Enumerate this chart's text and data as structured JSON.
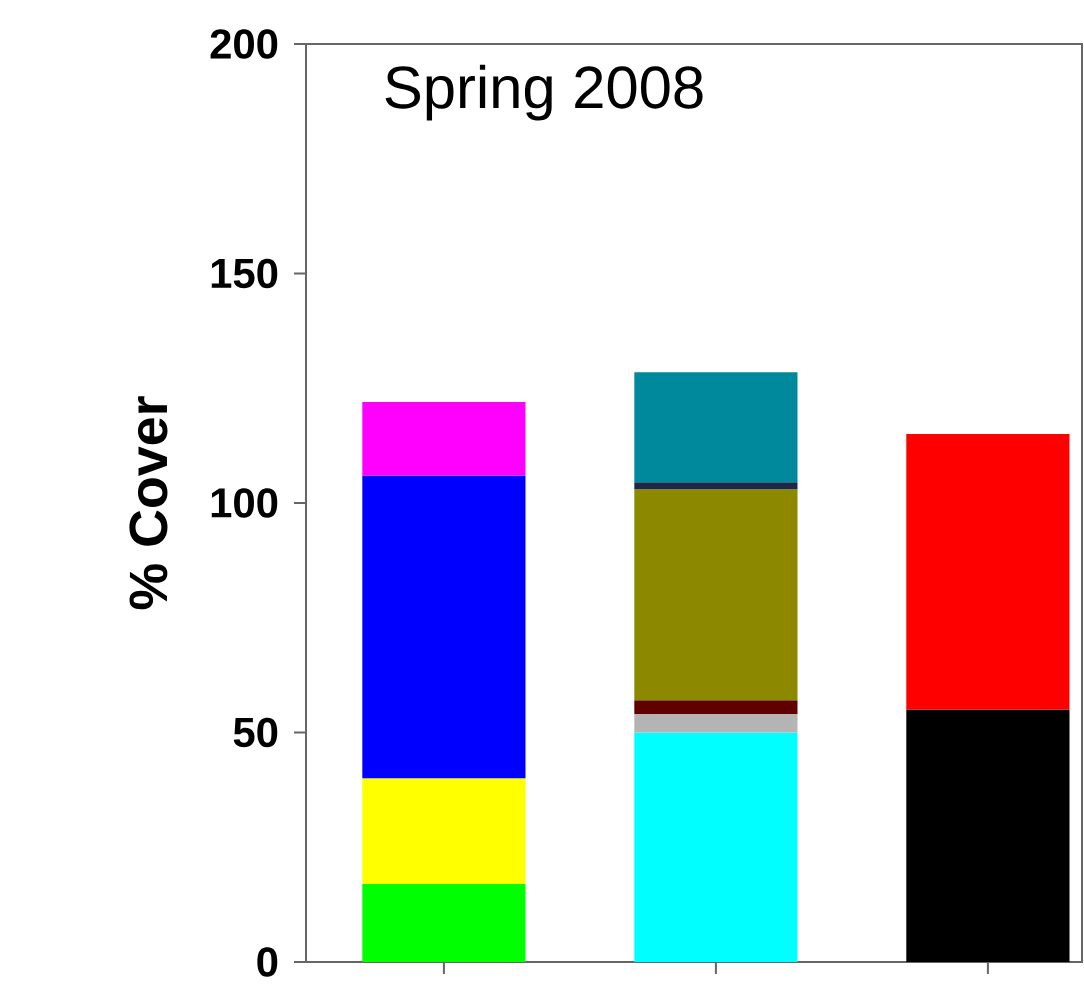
{
  "chart_data": {
    "type": "bar",
    "stacked": true,
    "title": "Spring 2008",
    "ylabel": "% Cover",
    "categories": [
      null,
      null,
      null
    ],
    "series": [
      {
        "color": "#00ff00",
        "values": [
          17,
          null,
          null
        ]
      },
      {
        "color": "#ffff00",
        "values": [
          23,
          null,
          null
        ]
      },
      {
        "color": "#0000ff",
        "values": [
          66,
          null,
          null
        ]
      },
      {
        "color": "#ff00ff",
        "values": [
          16,
          null,
          null
        ]
      },
      {
        "color": "#00ffff",
        "values": [
          null,
          50,
          null
        ]
      },
      {
        "color": "#b4b4b4",
        "values": [
          null,
          4,
          null
        ]
      },
      {
        "color": "#600000",
        "values": [
          null,
          3,
          null
        ]
      },
      {
        "color": "#8c8800",
        "values": [
          null,
          46,
          null
        ]
      },
      {
        "color": "#1c2848",
        "values": [
          null,
          1.5,
          null
        ]
      },
      {
        "color": "#00889c",
        "values": [
          null,
          24,
          null
        ]
      },
      {
        "color": "#000000",
        "values": [
          null,
          null,
          55
        ]
      },
      {
        "color": "#ff0000",
        "values": [
          null,
          null,
          60
        ]
      }
    ],
    "ylim": [
      0,
      200
    ],
    "yticks": [
      0,
      50,
      100,
      150,
      200
    ],
    "tick_labels": "y"
  }
}
